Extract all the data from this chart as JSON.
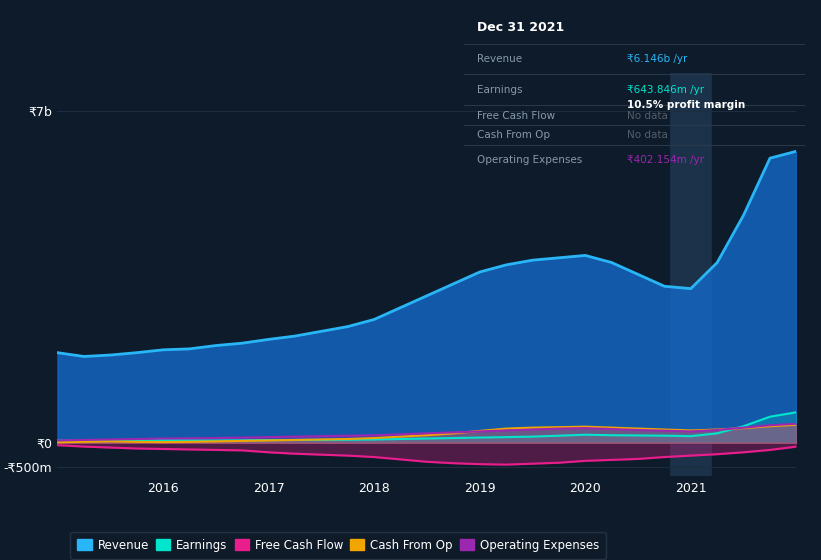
{
  "background_color": "#0d1b2a",
  "plot_bg_color": "#0d1b2a",
  "grid_color": "#1e2d3d",
  "years": [
    2015.0,
    2015.25,
    2015.5,
    2015.75,
    2016.0,
    2016.25,
    2016.5,
    2016.75,
    2017.0,
    2017.25,
    2017.5,
    2017.75,
    2018.0,
    2018.25,
    2018.5,
    2018.75,
    2019.0,
    2019.25,
    2019.5,
    2019.75,
    2020.0,
    2020.25,
    2020.5,
    2020.75,
    2021.0,
    2021.25,
    2021.5,
    2021.75,
    2022.0
  ],
  "revenue": [
    1900,
    1820,
    1850,
    1900,
    1960,
    1980,
    2050,
    2100,
    2180,
    2250,
    2350,
    2450,
    2600,
    2850,
    3100,
    3350,
    3600,
    3750,
    3850,
    3900,
    3950,
    3800,
    3550,
    3300,
    3250,
    3800,
    4800,
    6000,
    6146
  ],
  "earnings": [
    50,
    40,
    45,
    50,
    55,
    50,
    48,
    52,
    58,
    60,
    62,
    65,
    70,
    80,
    90,
    100,
    110,
    120,
    130,
    150,
    170,
    160,
    155,
    150,
    140,
    200,
    350,
    550,
    644
  ],
  "free_cash_flow": [
    -50,
    -80,
    -100,
    -120,
    -130,
    -140,
    -150,
    -160,
    -200,
    -230,
    -250,
    -270,
    -300,
    -350,
    -400,
    -430,
    -450,
    -460,
    -440,
    -420,
    -380,
    -360,
    -340,
    -300,
    -270,
    -240,
    -200,
    -150,
    -80
  ],
  "cash_from_op": [
    10,
    20,
    30,
    20,
    15,
    20,
    30,
    40,
    50,
    60,
    70,
    80,
    100,
    130,
    160,
    200,
    250,
    300,
    320,
    330,
    340,
    320,
    300,
    280,
    260,
    280,
    310,
    350,
    380
  ],
  "operating_expenses": [
    50,
    60,
    70,
    80,
    90,
    95,
    100,
    110,
    120,
    130,
    140,
    150,
    160,
    180,
    200,
    220,
    240,
    260,
    280,
    300,
    310,
    290,
    270,
    255,
    240,
    270,
    320,
    370,
    402
  ],
  "revenue_color": "#29b6f6",
  "earnings_color": "#00e5cc",
  "free_cash_flow_color": "#e91e8c",
  "cash_from_op_color": "#f0a500",
  "operating_expenses_color": "#9c27b0",
  "revenue_fill_color": "#1565c0",
  "ylim_min": -700,
  "ylim_max": 7800,
  "xtick_years": [
    2016,
    2017,
    2018,
    2019,
    2020,
    2021
  ],
  "tooltip": {
    "date": "Dec 31 2021",
    "revenue_val": "₹6.146b /yr",
    "earnings_val": "₹643.846m /yr",
    "profit_margin": "10.5% profit margin",
    "free_cash_flow": "No data",
    "cash_from_op": "No data",
    "operating_expenses": "₹402.154m /yr"
  },
  "legend_items": [
    {
      "label": "Revenue",
      "color": "#29b6f6"
    },
    {
      "label": "Earnings",
      "color": "#00e5cc"
    },
    {
      "label": "Free Cash Flow",
      "color": "#e91e8c"
    },
    {
      "label": "Cash From Op",
      "color": "#f0a500"
    },
    {
      "label": "Operating Expenses",
      "color": "#9c27b0"
    }
  ]
}
